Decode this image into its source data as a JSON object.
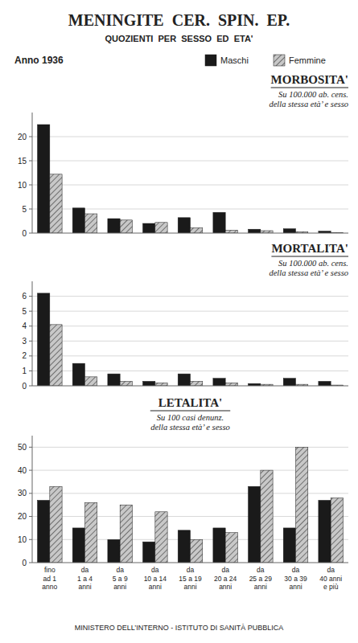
{
  "title": "MENINGITE  CER.  SPIN.  EP.",
  "subtitle": "QUOZIENTI  PER  SESSO  ED  ETA'",
  "annotations": [
    "Anno 1936",
    "MINISTERO DELL’INTERNO - ISTITUTO DI SANITÀ PUBBLICA"
  ],
  "chart_data": [
    {
      "type": "bar",
      "title": "MORBOSITA'",
      "subtitle": "Su 100.000 ab. cens.",
      "annotations": [
        "della stessa età’ e sesso"
      ],
      "categories": [
        null,
        null,
        null,
        null,
        null,
        null,
        null,
        null,
        null
      ],
      "series": [
        {
          "name": "Maschi",
          "color": "#1a1a1a",
          "values": [
            22.5,
            5.2,
            3.0,
            2.0,
            3.2,
            4.3,
            0.8,
            0.9,
            0.4
          ]
        },
        {
          "name": "Femmine",
          "color": "#c8c8c8",
          "values": [
            12.2,
            4.0,
            2.7,
            2.2,
            1.1,
            0.6,
            0.5,
            0.3,
            0.1
          ]
        }
      ],
      "ylim": [
        0,
        25
      ],
      "yticks": [
        0,
        5,
        10,
        15,
        20
      ],
      "grid": true,
      "legend": "top"
    },
    {
      "type": "bar",
      "title": "MORTALITA'",
      "subtitle": "Su 100.000 ab. cens.",
      "annotations": [
        "della stessa età’ e sesso"
      ],
      "categories": [
        null,
        null,
        null,
        null,
        null,
        null,
        null,
        null,
        null
      ],
      "series": [
        {
          "color": "#1a1a1a",
          "values": [
            6.2,
            1.5,
            0.8,
            0.3,
            0.8,
            0.5,
            0.15,
            0.5,
            0.3
          ]
        },
        {
          "color": "#c8c8c8",
          "values": [
            4.1,
            0.6,
            0.3,
            0.2,
            0.3,
            0.2,
            0.1,
            0.1,
            0.05
          ]
        }
      ],
      "ylim": [
        0,
        7
      ],
      "yticks": [
        0,
        1,
        2,
        3,
        4,
        5,
        6
      ],
      "grid": true
    },
    {
      "type": "bar",
      "title": "LETALITA'",
      "subtitle": "Su 100 casi denunz.",
      "annotations": [
        "della stessa età’ e sesso"
      ],
      "categories": [
        "fino\nad 1\nanno",
        "da\n1 a 4\nanni",
        "da\n5 a 9\nanni",
        "da\n10 a 14\nanni",
        "da\n15 a 19\nanni",
        "da\n20 a 24\nanni",
        "da\n25 a 29\nanni",
        "da\n30 a 39\nanni",
        "da\n40 anni\ne più"
      ],
      "series": [
        {
          "color": "#1a1a1a",
          "values": [
            27,
            15,
            10,
            9,
            14,
            15,
            33,
            15,
            27
          ]
        },
        {
          "color": "#c8c8c8",
          "values": [
            33,
            26,
            25,
            22,
            10,
            13,
            40,
            50,
            28
          ]
        }
      ],
      "ylim": [
        0,
        55
      ],
      "yticks": [
        0,
        10,
        20,
        30,
        40,
        50
      ],
      "grid": true
    }
  ]
}
